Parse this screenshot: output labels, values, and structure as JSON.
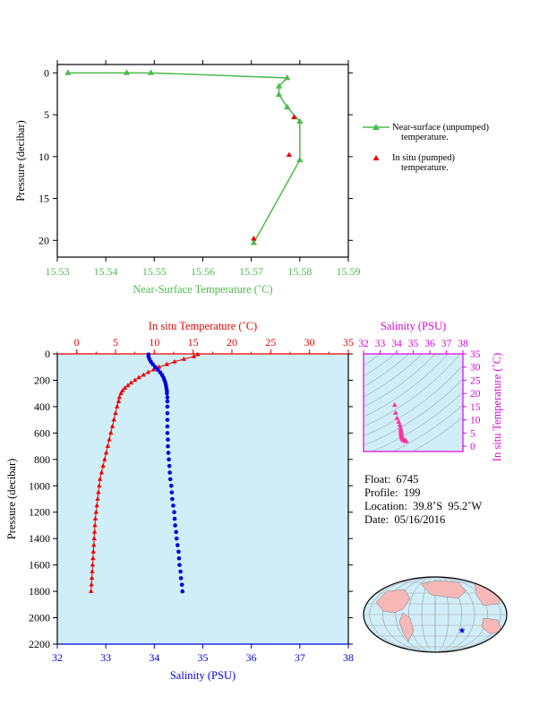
{
  "colors": {
    "green": "#4dbb4d",
    "red": "#ee0000",
    "blue": "#0000dd",
    "magenta": "#dd00dd",
    "pink": "#ff3399",
    "panel_bg": "#cfeef8",
    "land": "#f7b8b8"
  },
  "legend": {
    "near_surface_1": "Near-surface (unpumped)",
    "near_surface_2": "temperature.",
    "in_situ_1": "In situ (pumped)",
    "in_situ_2": "temperature."
  },
  "info": {
    "float": "Float:  6745",
    "profile": "Profile:  199",
    "location": "Location:  39.8˚S  95.2˚W",
    "date": "Date:  05/16/2016"
  },
  "footer_note": "",
  "chart_data": [
    {
      "type": "line",
      "id": "near_surface",
      "xlabel": "Near-Surface Temperature (˚C)",
      "ylabel": "Pressure (decibar)",
      "xlim": [
        15.53,
        15.59
      ],
      "ylim": [
        22,
        -1
      ],
      "xticks": [
        "15.53",
        "15.54",
        "15.55",
        "15.56",
        "15.57",
        "15.58",
        "15.59"
      ],
      "yticks": [
        "0",
        "5",
        "10",
        "15",
        "20"
      ],
      "series": [
        {
          "name": "Near-surface (unpumped) temperature.",
          "x": [
            15.5322,
            15.5443,
            15.5493,
            15.5774,
            15.5757,
            15.5757,
            15.5774,
            15.58,
            15.58,
            15.5705
          ],
          "y": [
            0.0,
            0.0,
            0.0,
            0.6,
            1.6,
            2.6,
            4.1,
            5.8,
            10.4,
            20.3
          ]
        },
        {
          "name": "In situ (pumped) temperature.",
          "x": [
            15.5788,
            15.5778,
            15.5705
          ],
          "y": [
            5.3,
            9.8,
            19.8
          ]
        }
      ]
    },
    {
      "type": "line",
      "id": "profile",
      "xlabel": "Salinity (PSU)",
      "ylabel": "Pressure (decibar)",
      "x2label": "In situ Temperature (˚C)",
      "salinity_lim": [
        32,
        38
      ],
      "temperature_lim": [
        -2.5,
        35
      ],
      "pressure_lim": [
        0,
        2200
      ],
      "salinity_ticks": [
        "32",
        "33",
        "34",
        "35",
        "36",
        "37",
        "38"
      ],
      "temperature_ticks": [
        "0",
        "5",
        "10",
        "15",
        "20",
        "25",
        "30",
        "35"
      ],
      "pressure_ticks": [
        "0",
        "200",
        "400",
        "600",
        "800",
        "1000",
        "1200",
        "1400",
        "1600",
        "1800",
        "2000",
        "2200"
      ],
      "series": [
        {
          "name": "In situ Temperature",
          "pressure": [
            5,
            20,
            40,
            60,
            80,
            100,
            120,
            140,
            160,
            180,
            200,
            220,
            240,
            260,
            280,
            300,
            330,
            360,
            400,
            450,
            500,
            550,
            600,
            650,
            700,
            750,
            800,
            850,
            900,
            950,
            1000,
            1050,
            1100,
            1150,
            1200,
            1250,
            1300,
            1350,
            1400,
            1450,
            1500,
            1550,
            1600,
            1650,
            1700,
            1750,
            1800
          ],
          "temperature": [
            15.6,
            15.1,
            13.8,
            12.6,
            11.6,
            10.6,
            9.9,
            9.2,
            8.6,
            8.0,
            7.5,
            7.0,
            6.6,
            6.2,
            5.9,
            5.7,
            5.5,
            5.4,
            5.2,
            5.0,
            4.8,
            4.6,
            4.4,
            4.2,
            4.0,
            3.8,
            3.6,
            3.4,
            3.2,
            3.0,
            2.9,
            2.8,
            2.7,
            2.6,
            2.5,
            2.4,
            2.35,
            2.3,
            2.25,
            2.2,
            2.15,
            2.1,
            2.05,
            2.0,
            1.95,
            1.9,
            1.85
          ]
        },
        {
          "name": "Salinity",
          "pressure": [
            5,
            20,
            40,
            60,
            80,
            100,
            120,
            140,
            160,
            180,
            200,
            220,
            240,
            260,
            280,
            300,
            330,
            360,
            400,
            450,
            500,
            550,
            600,
            650,
            700,
            750,
            800,
            850,
            900,
            950,
            1000,
            1050,
            1100,
            1150,
            1200,
            1250,
            1300,
            1350,
            1400,
            1450,
            1500,
            1550,
            1600,
            1650,
            1700,
            1750,
            1800
          ],
          "salinity": [
            33.88,
            33.88,
            33.9,
            33.93,
            33.97,
            34.02,
            34.07,
            34.12,
            34.16,
            34.19,
            34.21,
            34.23,
            34.24,
            34.25,
            34.26,
            34.26,
            34.27,
            34.27,
            34.27,
            34.27,
            34.27,
            34.27,
            34.27,
            34.28,
            34.28,
            34.29,
            34.3,
            34.31,
            34.32,
            34.33,
            34.35,
            34.36,
            34.37,
            34.39,
            34.41,
            34.42,
            34.43,
            34.45,
            34.46,
            34.48,
            34.5,
            34.51,
            34.52,
            34.54,
            34.55,
            34.57,
            34.58
          ]
        }
      ]
    },
    {
      "type": "scatter",
      "id": "ts_diagram",
      "xlabel": "Salinity (PSU)",
      "ylabel": "In situ Temperature (˚C)",
      "xlim": [
        32,
        38
      ],
      "ylim": [
        -2,
        35
      ],
      "xticks": [
        "32",
        "33",
        "34",
        "35",
        "36",
        "37",
        "38"
      ],
      "yticks": [
        "0",
        "5",
        "10",
        "15",
        "20",
        "25",
        "30",
        "35"
      ],
      "points_s": [
        33.88,
        33.93,
        34.02,
        34.12,
        34.19,
        34.23,
        34.25,
        34.26,
        34.27,
        34.27,
        34.27,
        34.28,
        34.29,
        34.31,
        34.33,
        34.35,
        34.37,
        34.41,
        34.43,
        34.46,
        34.5,
        34.52,
        34.55,
        34.58
      ],
      "points_t": [
        15.6,
        12.6,
        10.6,
        9.2,
        8.0,
        7.0,
        6.2,
        5.7,
        5.4,
        5.0,
        4.6,
        4.2,
        3.8,
        3.4,
        3.0,
        2.8,
        2.6,
        2.4,
        2.3,
        2.2,
        2.1,
        2.0,
        1.9,
        1.85
      ]
    }
  ]
}
